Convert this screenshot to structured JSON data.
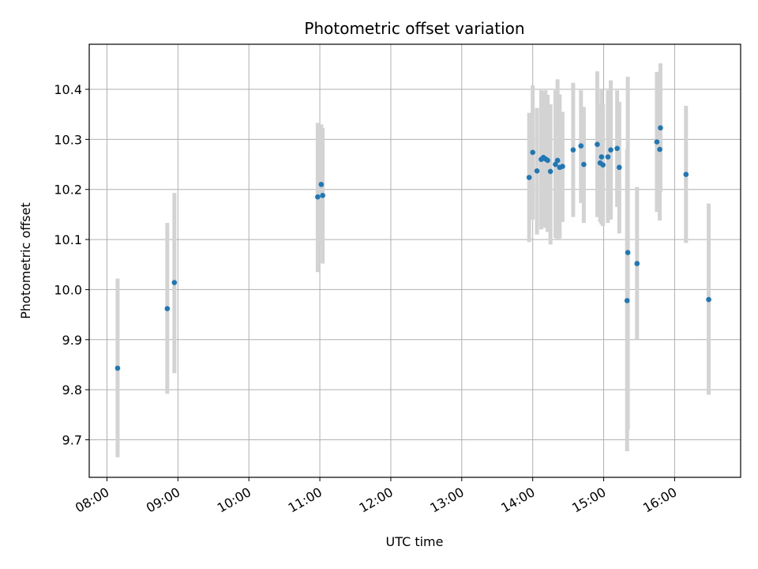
{
  "chart_data": {
    "type": "scatter",
    "title": "Photometric offset variation",
    "xlabel": "UTC time",
    "ylabel": "Photometric offset",
    "x_unit": "hours UTC",
    "xlim": [
      7.75,
      16.93
    ],
    "ylim": [
      9.625,
      10.49
    ],
    "x_ticks": [
      {
        "value": 8,
        "label": "08:00"
      },
      {
        "value": 9,
        "label": "09:00"
      },
      {
        "value": 10,
        "label": "10:00"
      },
      {
        "value": 11,
        "label": "11:00"
      },
      {
        "value": 12,
        "label": "12:00"
      },
      {
        "value": 13,
        "label": "13:00"
      },
      {
        "value": 14,
        "label": "14:00"
      },
      {
        "value": 15,
        "label": "15:00"
      },
      {
        "value": 16,
        "label": "16:00"
      }
    ],
    "y_ticks": [
      {
        "value": 9.7,
        "label": "9.7"
      },
      {
        "value": 9.8,
        "label": "9.8"
      },
      {
        "value": 9.9,
        "label": "9.9"
      },
      {
        "value": 10.0,
        "label": "10.0"
      },
      {
        "value": 10.1,
        "label": "10.1"
      },
      {
        "value": 10.2,
        "label": "10.2"
      },
      {
        "value": 10.3,
        "label": "10.3"
      },
      {
        "value": 10.4,
        "label": "10.4"
      }
    ],
    "grid": true,
    "colors": {
      "point": "#1f77b4",
      "errorbar": "#d3d3d3"
    },
    "series": [
      {
        "name": "offset",
        "points": [
          {
            "x": 8.15,
            "y": 9.843,
            "lo": 9.665,
            "hi": 10.022
          },
          {
            "x": 8.85,
            "y": 9.962,
            "lo": 9.792,
            "hi": 10.133
          },
          {
            "x": 8.95,
            "y": 10.014,
            "lo": 9.833,
            "hi": 10.193
          },
          {
            "x": 10.97,
            "y": 10.185,
            "lo": 10.035,
            "hi": 10.333
          },
          {
            "x": 11.02,
            "y": 10.21,
            "lo": 10.09,
            "hi": 10.33
          },
          {
            "x": 11.04,
            "y": 10.188,
            "lo": 10.052,
            "hi": 10.323
          },
          {
            "x": 13.95,
            "y": 10.224,
            "lo": 10.095,
            "hi": 10.353
          },
          {
            "x": 14.0,
            "y": 10.274,
            "lo": 10.14,
            "hi": 10.408
          },
          {
            "x": 14.06,
            "y": 10.237,
            "lo": 10.11,
            "hi": 10.363
          },
          {
            "x": 14.12,
            "y": 10.26,
            "lo": 10.12,
            "hi": 10.398
          },
          {
            "x": 14.15,
            "y": 10.264,
            "lo": 10.125,
            "hi": 10.395
          },
          {
            "x": 14.18,
            "y": 10.261,
            "lo": 10.123,
            "hi": 10.398
          },
          {
            "x": 14.21,
            "y": 10.258,
            "lo": 10.115,
            "hi": 10.389
          },
          {
            "x": 14.25,
            "y": 10.236,
            "lo": 10.09,
            "hi": 10.37
          },
          {
            "x": 14.32,
            "y": 10.25,
            "lo": 10.103,
            "hi": 10.398
          },
          {
            "x": 14.35,
            "y": 10.258,
            "lo": 10.1,
            "hi": 10.42
          },
          {
            "x": 14.38,
            "y": 10.244,
            "lo": 10.102,
            "hi": 10.39
          },
          {
            "x": 14.42,
            "y": 10.246,
            "lo": 10.135,
            "hi": 10.355
          },
          {
            "x": 14.57,
            "y": 10.279,
            "lo": 10.145,
            "hi": 10.413
          },
          {
            "x": 14.68,
            "y": 10.287,
            "lo": 10.173,
            "hi": 10.398
          },
          {
            "x": 14.72,
            "y": 10.25,
            "lo": 10.133,
            "hi": 10.365
          },
          {
            "x": 14.91,
            "y": 10.29,
            "lo": 10.145,
            "hi": 10.436
          },
          {
            "x": 14.95,
            "y": 10.253,
            "lo": 10.135,
            "hi": 10.372
          },
          {
            "x": 14.97,
            "y": 10.265,
            "lo": 10.13,
            "hi": 10.4
          },
          {
            "x": 14.99,
            "y": 10.249,
            "lo": 10.127,
            "hi": 10.37
          },
          {
            "x": 15.06,
            "y": 10.265,
            "lo": 10.133,
            "hi": 10.398
          },
          {
            "x": 15.1,
            "y": 10.279,
            "lo": 10.14,
            "hi": 10.418
          },
          {
            "x": 15.19,
            "y": 10.282,
            "lo": 10.165,
            "hi": 10.398
          },
          {
            "x": 15.22,
            "y": 10.244,
            "lo": 10.112,
            "hi": 10.375
          },
          {
            "x": 15.34,
            "y": 10.074,
            "lo": 9.72,
            "hi": 10.425
          },
          {
            "x": 15.33,
            "y": 9.978,
            "lo": 9.677,
            "hi": 10.28
          },
          {
            "x": 15.47,
            "y": 10.052,
            "lo": 9.9,
            "hi": 10.205
          },
          {
            "x": 15.75,
            "y": 10.295,
            "lo": 10.155,
            "hi": 10.435
          },
          {
            "x": 15.79,
            "y": 10.28,
            "lo": 10.138,
            "hi": 10.42
          },
          {
            "x": 15.8,
            "y": 10.323,
            "lo": 10.195,
            "hi": 10.452
          },
          {
            "x": 16.16,
            "y": 10.23,
            "lo": 10.093,
            "hi": 10.367
          },
          {
            "x": 16.48,
            "y": 9.98,
            "lo": 9.79,
            "hi": 10.172
          }
        ]
      }
    ]
  }
}
